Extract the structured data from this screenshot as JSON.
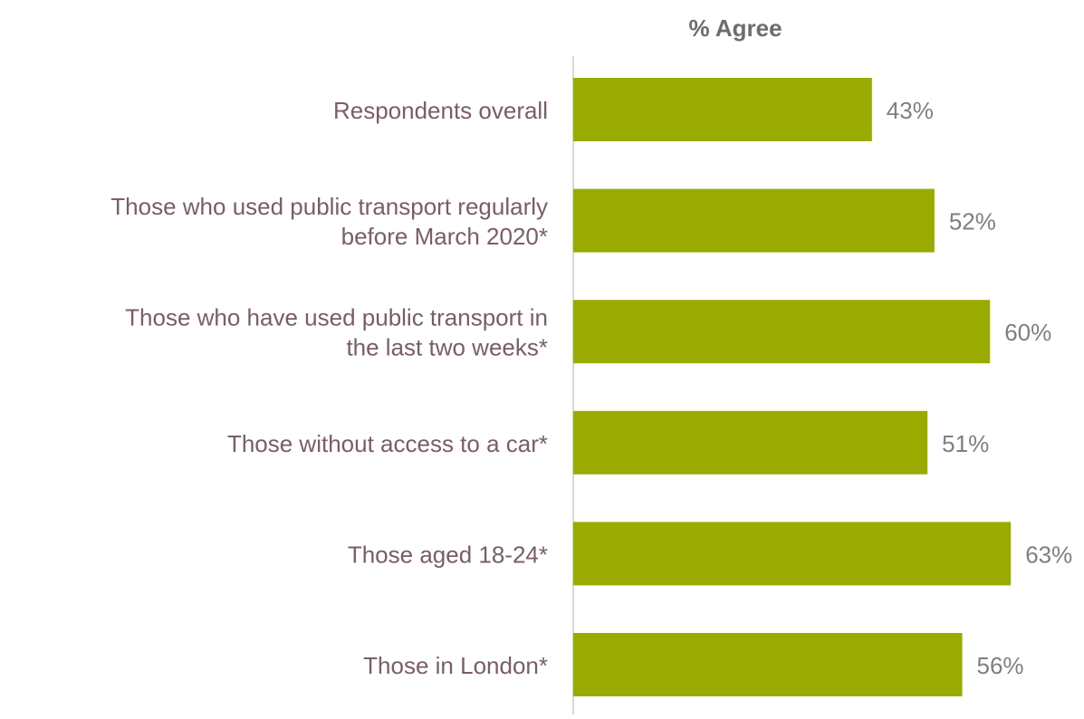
{
  "chart_data": {
    "type": "bar",
    "orientation": "horizontal",
    "title": "% Agree",
    "categories": [
      [
        "Respondents overall"
      ],
      [
        "Those who used public transport regularly",
        "before March 2020*"
      ],
      [
        "Those who have used public transport in",
        "the last two weeks*"
      ],
      [
        "Those without access to a car*"
      ],
      [
        "Those aged 18-24*"
      ],
      [
        "Those in London*"
      ]
    ],
    "values": [
      43,
      52,
      60,
      51,
      63,
      56
    ],
    "value_labels": [
      "43%",
      "52%",
      "60%",
      "51%",
      "63%",
      "56%"
    ],
    "xlim": [
      0,
      100
    ],
    "grid": false,
    "legend": "none"
  },
  "colors": {
    "bar": "#9aab00",
    "category_text": "#7a5c6c",
    "value_text": "#7f7f7f",
    "title_text": "#6d6d6d",
    "axis_line": "#d9d9d9"
  }
}
